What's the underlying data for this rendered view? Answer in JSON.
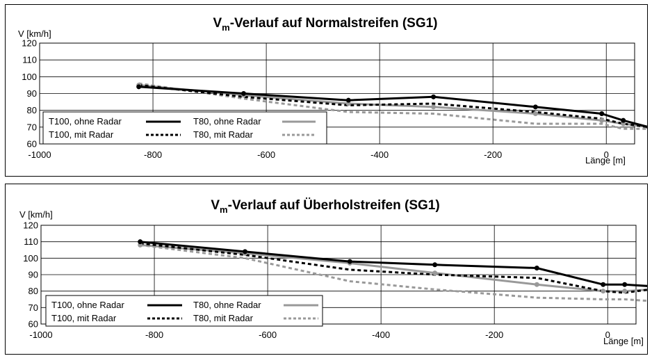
{
  "chart_data": [
    {
      "type": "line",
      "title": "V",
      "title_sub": "m",
      "title_rest": "-Verlauf auf Normalstreifen (SG1)",
      "ylabel": "V [km/h]",
      "xlabel": "Länge [m]",
      "xlim": [
        -1000,
        50
      ],
      "ylim": [
        60,
        120
      ],
      "xticks": [
        -1000,
        -800,
        -600,
        -400,
        -200,
        0
      ],
      "yticks": [
        60,
        70,
        80,
        90,
        100,
        110,
        120
      ],
      "grid": true,
      "legend_position": "bottom-left",
      "series": [
        {
          "name": "T100, ohne Radar",
          "style": "solid",
          "color": "#000000",
          "markers": true,
          "x": [
            -825,
            -640,
            -455,
            -305,
            -125,
            -8,
            30,
            75
          ],
          "y": [
            94,
            90,
            86,
            88,
            82,
            78,
            74,
            70
          ]
        },
        {
          "name": "T100, mit Radar",
          "style": "dashed",
          "color": "#000000",
          "markers": false,
          "x": [
            -825,
            -640,
            -455,
            -305,
            -125,
            -8,
            30,
            75
          ],
          "y": [
            95,
            88,
            83,
            84,
            79,
            75,
            72,
            70
          ]
        },
        {
          "name": "T80, ohne Radar",
          "style": "solid",
          "color": "#999999",
          "markers": true,
          "x": [
            -825,
            -640,
            -455,
            -305,
            -125,
            -8,
            30,
            75
          ],
          "y": [
            95,
            89,
            84,
            82,
            78,
            74,
            72,
            70
          ]
        },
        {
          "name": "T80, mit Radar",
          "style": "dashed",
          "color": "#999999",
          "markers": false,
          "x": [
            -825,
            -640,
            -455,
            -305,
            -125,
            -8,
            30,
            75
          ],
          "y": [
            96,
            87,
            79,
            78,
            72,
            72,
            69,
            69
          ]
        }
      ]
    },
    {
      "type": "line",
      "title": "V",
      "title_sub": "m",
      "title_rest": "-Verlauf auf Überholstreifen (SG1)",
      "ylabel": "V [km/h]",
      "xlabel": "Länge [m]",
      "xlim": [
        -1000,
        50
      ],
      "ylim": [
        60,
        120
      ],
      "xticks": [
        -1000,
        -800,
        -600,
        -400,
        -200,
        0
      ],
      "yticks": [
        60,
        70,
        80,
        90,
        100,
        110,
        120
      ],
      "grid": true,
      "legend_position": "bottom-left",
      "series": [
        {
          "name": "T100, ohne Radar",
          "style": "solid",
          "color": "#000000",
          "markers": true,
          "x": [
            -825,
            -640,
            -455,
            -305,
            -125,
            -8,
            30,
            75
          ],
          "y": [
            110,
            104,
            98,
            96,
            94,
            84,
            84,
            83
          ]
        },
        {
          "name": "T100, mit Radar",
          "style": "dashed",
          "color": "#000000",
          "markers": false,
          "x": [
            -825,
            -640,
            -455,
            -305,
            -125,
            -8,
            30,
            75
          ],
          "y": [
            109,
            102,
            93,
            90,
            88,
            80,
            79,
            81
          ]
        },
        {
          "name": "T80, ohne Radar",
          "style": "solid",
          "color": "#999999",
          "markers": true,
          "x": [
            -825,
            -640,
            -455,
            -305,
            -125,
            -8,
            30,
            75
          ],
          "y": [
            108,
            103,
            97,
            91,
            84,
            80,
            80,
            81
          ]
        },
        {
          "name": "T80, mit Radar",
          "style": "dashed",
          "color": "#999999",
          "markers": false,
          "x": [
            -825,
            -640,
            -455,
            -305,
            -125,
            -8,
            30,
            75
          ],
          "y": [
            108,
            100,
            86,
            81,
            76,
            75,
            75,
            74
          ]
        }
      ]
    }
  ]
}
